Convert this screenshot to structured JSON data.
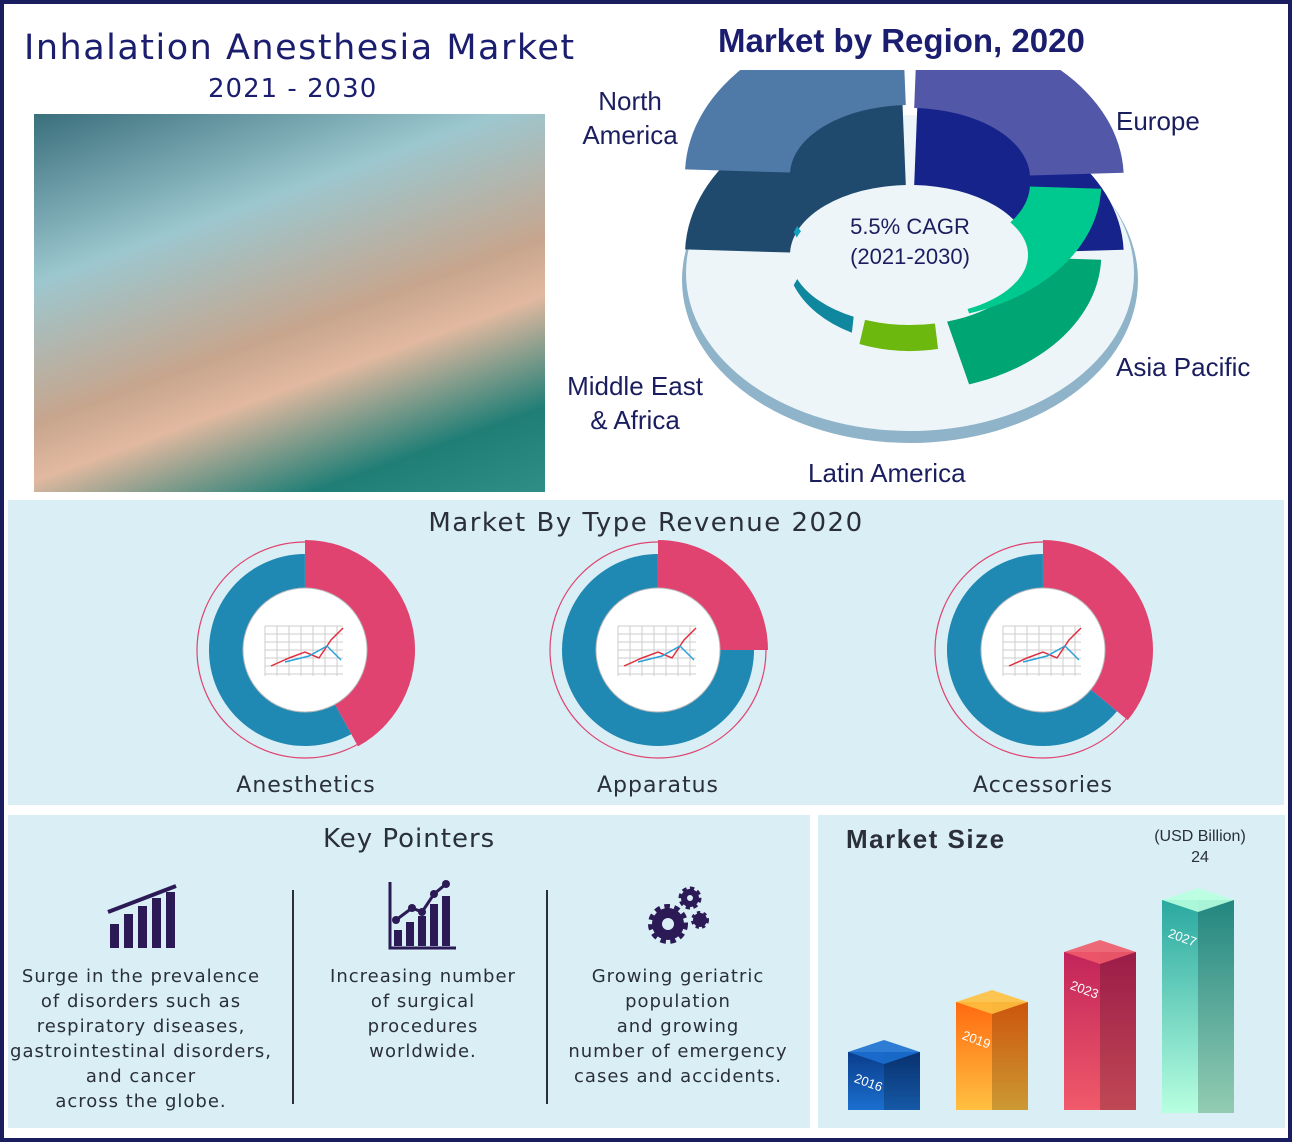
{
  "header": {
    "title": "Inhalation Anesthesia Market",
    "years": "2021 - 2030"
  },
  "photo": {
    "icon": "anesthesia-mask-photo"
  },
  "chart_data": [
    {
      "type": "pie",
      "title": "Market by Region, 2020",
      "center_text": [
        "5.5% CAGR",
        "(2021-2030)"
      ],
      "categories": [
        "North America",
        "Europe",
        "Asia Pacific",
        "Latin America",
        "Middle East & Africa"
      ],
      "colors": [
        "#4f7aa8",
        "#5257a8",
        "#00c98f",
        "#7ed600",
        "#12a0c0"
      ]
    },
    {
      "type": "pie",
      "title": "Market By Type Revenue 2020",
      "charts": [
        {
          "label": "Anesthetics",
          "share_pink": 0.42
        },
        {
          "label": "Apparatus",
          "share_pink": 0.25
        },
        {
          "label": "Accessories",
          "share_pink": 0.36
        }
      ],
      "colors": {
        "pink": "#e0436f",
        "blue": "#1f88b3"
      }
    },
    {
      "type": "bar",
      "title": "Market Size",
      "unit": "(USD Billion)",
      "categories": [
        "2016",
        "2019",
        "2023",
        "2027"
      ],
      "annotation": "24",
      "colors": [
        "#0d4fa0",
        "#fb8a1e",
        "#e8405f",
        "#4fd8c0"
      ]
    }
  ],
  "region_labels": {
    "na": [
      "North",
      "America"
    ],
    "eu": "Europe",
    "ap": "Asia Pacific",
    "la": "Latin America",
    "mea": [
      "Middle East",
      "& Africa"
    ]
  },
  "key_pointers": {
    "title": "Key Pointers",
    "items": [
      {
        "icon": "bar-chart-icon",
        "lines": [
          "Surge in the prevalence",
          "of disorders such as",
          "respiratory diseases,",
          "gastrointestinal disorders,",
          "and cancer",
          "across the globe."
        ]
      },
      {
        "icon": "growth-chart-icon",
        "lines": [
          "Increasing number",
          "of surgical",
          "procedures",
          "worldwide."
        ]
      },
      {
        "icon": "gears-icon",
        "lines": [
          "Growing geriatric",
          "population",
          "and growing",
          "number of emergency",
          "cases and accidents."
        ]
      }
    ]
  }
}
